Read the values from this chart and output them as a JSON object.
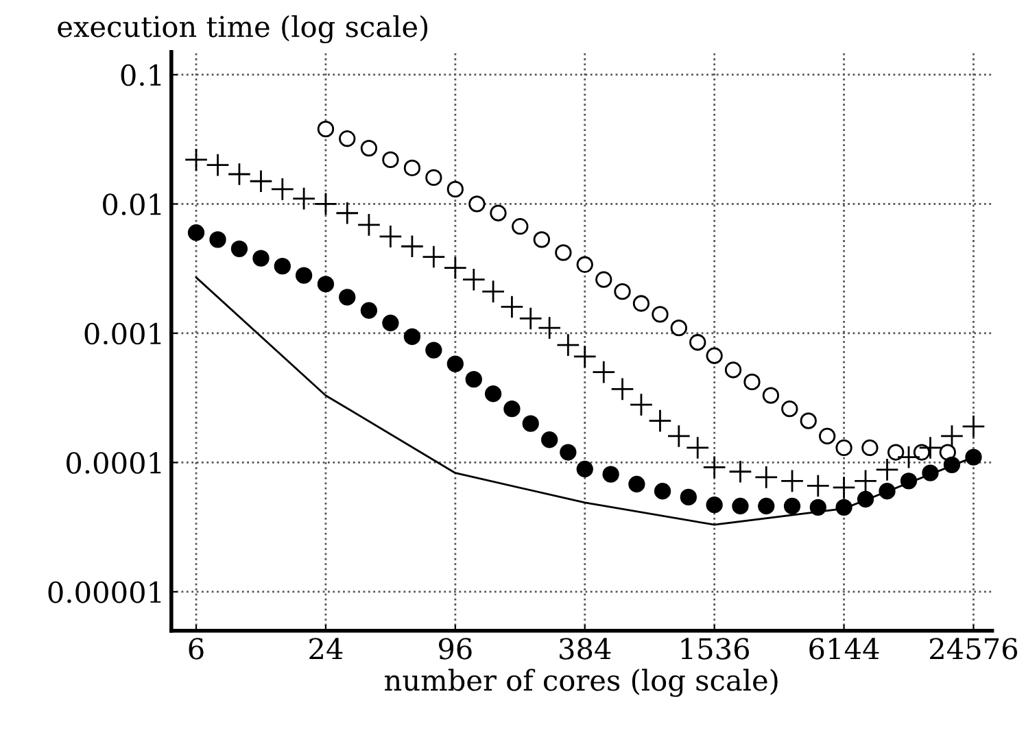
{
  "chart_data": {
    "type": "scatter",
    "xlabel": "number of cores (log scale)",
    "ylabel": "execution time (log scale)",
    "log": "xy",
    "grid": true,
    "xlim": [
      4.6,
      30000
    ],
    "ylim": [
      5e-06,
      0.15
    ],
    "xticks": [
      6,
      24,
      96,
      384,
      1536,
      6144,
      24576
    ],
    "yticks": [
      {
        "value": 1e-05,
        "label": "0.00001"
      },
      {
        "value": 0.0001,
        "label": "0.0001"
      },
      {
        "value": 0.001,
        "label": "0.001"
      },
      {
        "value": 0.01,
        "label": "0.01"
      },
      {
        "value": 0.1,
        "label": "0.1"
      }
    ],
    "series": [
      {
        "marker": "circle",
        "color": "#ffffff",
        "x": [
          24,
          30.2,
          38.1,
          48,
          60.5,
          76.2,
          96,
          121,
          152,
          192,
          242,
          305,
          384,
          470,
          574,
          702,
          859,
          1050,
          1284,
          1536,
          1878,
          2297,
          2809,
          3435,
          4201,
          5137,
          6144,
          8109,
          10702,
          14124,
          18641
        ],
        "values": [
          0.038,
          0.032,
          0.027,
          0.022,
          0.019,
          0.016,
          0.013,
          0.01,
          0.0085,
          0.0067,
          0.0053,
          0.0042,
          0.0034,
          0.0026,
          0.0021,
          0.0017,
          0.0014,
          0.0011,
          0.00085,
          0.00067,
          0.00052,
          0.00042,
          0.00033,
          0.00026,
          0.00021,
          0.00016,
          0.00013,
          0.00013,
          0.00012,
          0.00012,
          0.00012
        ]
      },
      {
        "marker": "cross",
        "color": "#000000",
        "x": [
          6,
          7.56,
          9.52,
          12,
          15.1,
          19.0,
          24,
          30.2,
          38.1,
          48,
          60.5,
          76.2,
          96,
          117,
          144,
          176,
          215,
          263,
          321,
          384,
          470,
          574,
          702,
          859,
          1050,
          1284,
          1536,
          2027,
          2675,
          3530,
          4657,
          6144,
          7741,
          9753,
          12288,
          15482,
          19506,
          24576
        ],
        "values": [
          0.022,
          0.02,
          0.017,
          0.015,
          0.013,
          0.011,
          0.01,
          0.0085,
          0.0069,
          0.0056,
          0.0047,
          0.0039,
          0.0032,
          0.0026,
          0.0021,
          0.0016,
          0.0013,
          0.0011,
          0.00081,
          0.00066,
          0.0005,
          0.00037,
          0.00028,
          0.00021,
          0.00016,
          0.00013,
          9.2e-05,
          8.5e-05,
          7.7e-05,
          7.2e-05,
          6.6e-05,
          6.4e-05,
          7.2e-05,
          8.8e-05,
          0.00011,
          0.00013,
          0.00016,
          0.00019
        ]
      },
      {
        "marker": "circle",
        "color": "#000000",
        "x": [
          6,
          7.56,
          9.52,
          12,
          15.1,
          19.0,
          24,
          30.2,
          38.1,
          48,
          60.5,
          76.2,
          96,
          117,
          144,
          176,
          215,
          263,
          321,
          384,
          507,
          669,
          882,
          1164,
          1536,
          2027,
          2675,
          3530,
          4657,
          6144,
          7741,
          9753,
          12288,
          15482,
          19506,
          24576
        ],
        "values": [
          0.006,
          0.0053,
          0.0045,
          0.0038,
          0.0033,
          0.0028,
          0.0024,
          0.0019,
          0.0015,
          0.0012,
          0.00094,
          0.00074,
          0.00058,
          0.00044,
          0.00034,
          0.00026,
          0.0002,
          0.00015,
          0.00012,
          8.9e-05,
          8.1e-05,
          6.8e-05,
          6e-05,
          5.4e-05,
          4.7e-05,
          4.6e-05,
          4.6e-05,
          4.6e-05,
          4.5e-05,
          4.5e-05,
          5.2e-05,
          6e-05,
          7.2e-05,
          8.3e-05,
          9.6e-05,
          0.00011
        ]
      },
      {
        "type": "line",
        "marker": "none",
        "line_style": "solid",
        "color": "#000000",
        "x": [
          6,
          24,
          96,
          384,
          1536,
          6144,
          24576
        ],
        "values": [
          0.0027,
          0.00033,
          8.3e-05,
          4.9e-05,
          3.3e-05,
          4.4e-05,
          0.00011
        ]
      }
    ]
  }
}
